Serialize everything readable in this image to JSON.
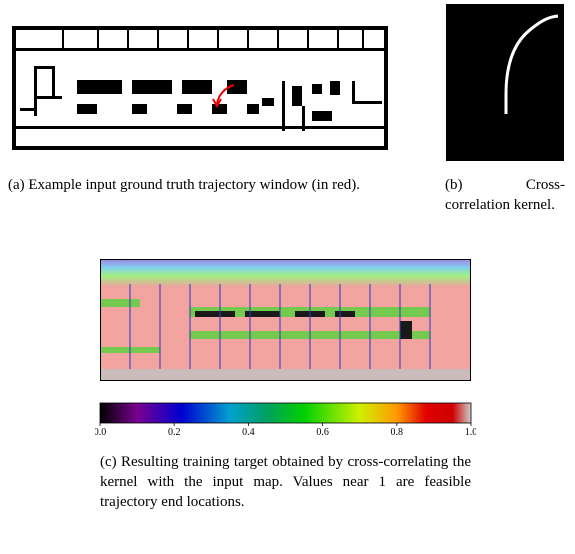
{
  "figure": {
    "panels": [
      {
        "caption": "(a) Example input ground truth trajectory window (in red)."
      },
      {
        "caption": "(b) Cross-correlation kernel."
      },
      {
        "caption": "(c) Resulting training target obtained by cross-correlating the kernel with the input map. Values near 1 are feasible trajectory end locations."
      }
    ],
    "colorbar": {
      "lim": [
        0,
        1
      ],
      "ticks": [
        {
          "value": 0,
          "label": "0.0"
        },
        0.2,
        0.4,
        0.6,
        0.8,
        {
          "value": 1,
          "label": "1.0"
        }
      ]
    }
  }
}
